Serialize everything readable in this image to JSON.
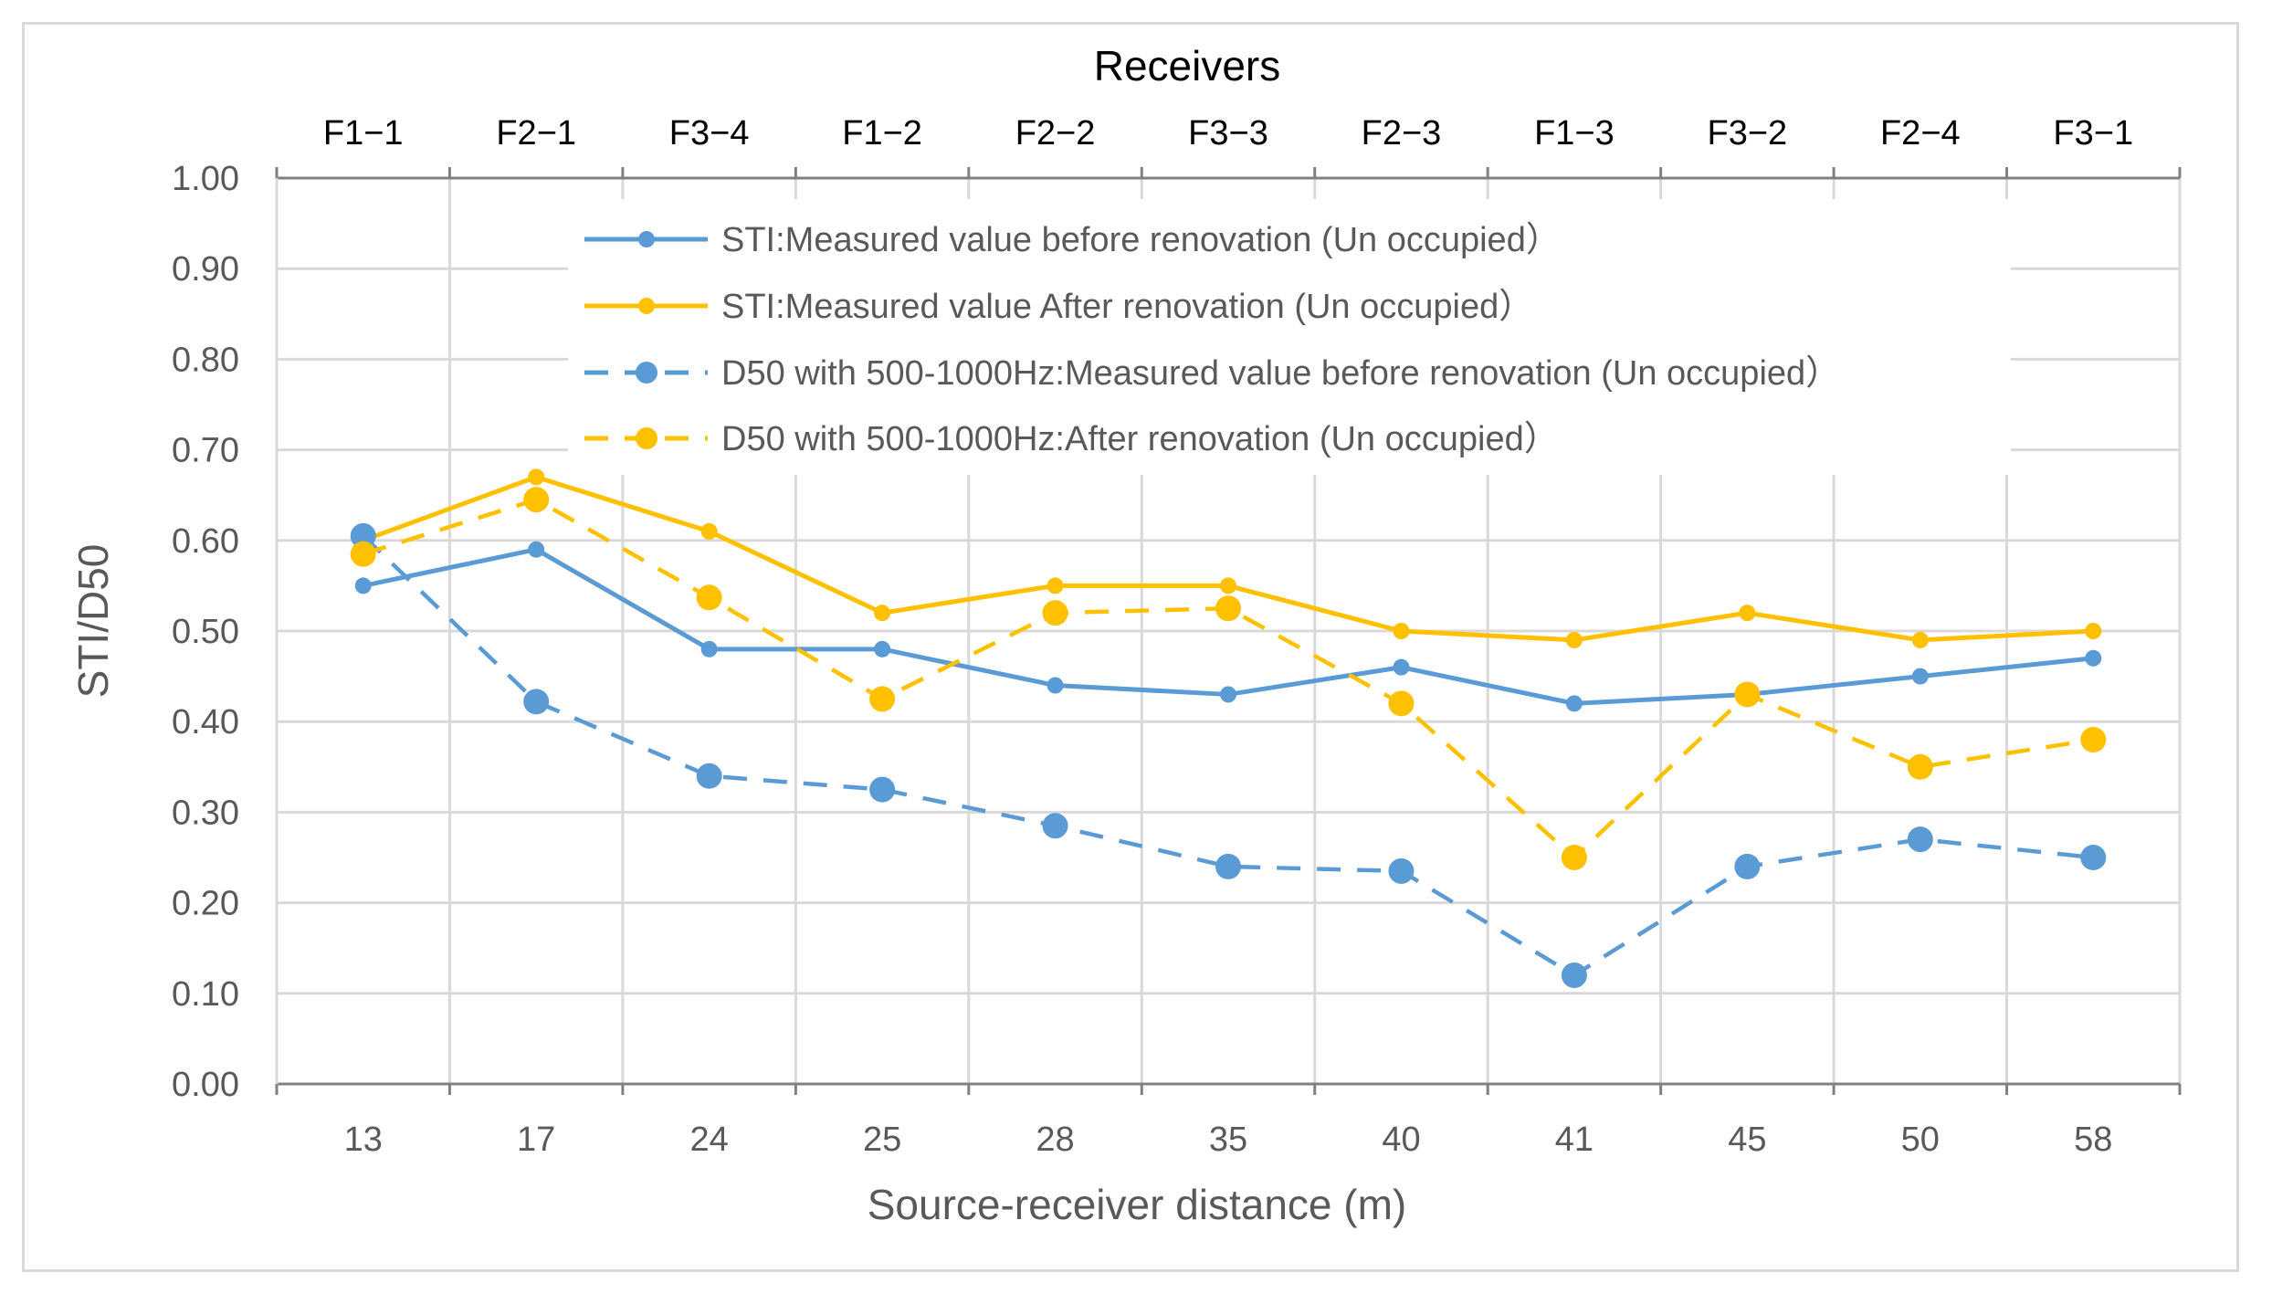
{
  "chart_data": {
    "type": "line",
    "title": "",
    "x_axis_top_title": "Receivers",
    "xlabel": "Source-receiver distance (m)",
    "ylabel": "STI/D50",
    "categories": [
      "13",
      "17",
      "24",
      "25",
      "28",
      "35",
      "40",
      "41",
      "45",
      "50",
      "58"
    ],
    "top_categories": [
      "F1−1",
      "F2−1",
      "F3−4",
      "F1−2",
      "F2−2",
      "F3−3",
      "F2−3",
      "F1−3",
      "F3−2",
      "F2−4",
      "F3−1"
    ],
    "ylim": [
      0,
      1.0
    ],
    "y_ticks": [
      "0.00",
      "0.10",
      "0.20",
      "0.30",
      "0.40",
      "0.50",
      "0.60",
      "0.70",
      "0.80",
      "0.90",
      "1.00"
    ],
    "grid": true,
    "legend_position": "top-center",
    "series": [
      {
        "name": "STI:Measured value before renovation (Un occupied）",
        "values": [
          0.55,
          0.59,
          0.48,
          0.48,
          0.44,
          0.43,
          0.46,
          0.42,
          0.43,
          0.45,
          0.47
        ],
        "color": "#5b9bd5",
        "line_style": "solid",
        "marker": "small"
      },
      {
        "name": "STI:Measured value After renovation (Un occupied）",
        "values": [
          0.6,
          0.67,
          0.61,
          0.52,
          0.55,
          0.55,
          0.5,
          0.49,
          0.52,
          0.49,
          0.5
        ],
        "color": "#ffc000",
        "line_style": "solid",
        "marker": "small"
      },
      {
        "name": "D50 with 500-1000Hz:Measured value before renovation (Un occupied）",
        "values": [
          0.605,
          0.422,
          0.34,
          0.325,
          0.285,
          0.24,
          0.235,
          0.12,
          0.24,
          0.27,
          0.25
        ],
        "color": "#5b9bd5",
        "line_style": "dashed",
        "marker": "large"
      },
      {
        "name": "D50 with 500-1000Hz:After renovation (Un occupied）",
        "values": [
          0.585,
          0.645,
          0.537,
          0.425,
          0.52,
          0.525,
          0.42,
          0.25,
          0.43,
          0.35,
          0.38
        ],
        "color": "#ffc000",
        "line_style": "dashed",
        "marker": "large"
      }
    ]
  },
  "colors": {
    "axis": "#808080",
    "grid": "#d9d9d9",
    "blue": "#5b9bd5",
    "orange": "#ffc000"
  }
}
